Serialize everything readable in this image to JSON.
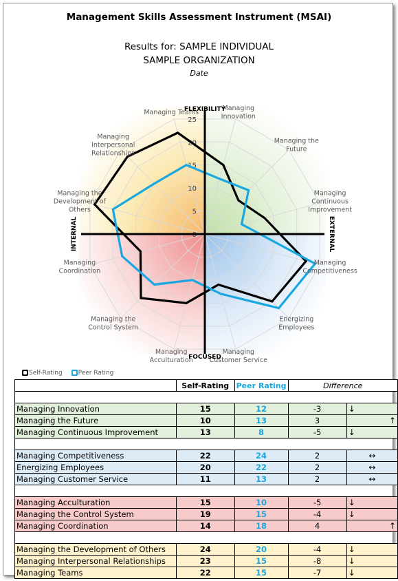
{
  "page": {
    "title": "Management Skills Assessment Instrument (MSAI)",
    "subtitle_line1": "Results for: SAMPLE INDIVIDUAL",
    "subtitle_line2": "SAMPLE ORGANIZATION",
    "date": "Date"
  },
  "colors": {
    "self": "#000000",
    "peer": "#1aa7e0",
    "green_quadrant": "#e2efda",
    "blue_quadrant": "#ddebf7",
    "red_quadrant": "#f8cbcb",
    "yellow_quadrant": "#fff2cc"
  },
  "chart_data": {
    "type": "radar",
    "axis_labels": {
      "top": "FLEXIBILITY",
      "bottom": "FOCUSED",
      "left": "INTERNAL",
      "right": "EXTERNAL"
    },
    "radial_ticks": [
      0,
      5,
      10,
      15,
      20,
      25
    ],
    "rmax": 25,
    "categories": [
      "Managing Innovation",
      "Managing the Future",
      "Managing Continuous Improvement",
      "Managing Competitiveness",
      "Energizing Employees",
      "Managing Customer Service",
      "Managing Acculturation",
      "Managing the Control System",
      "Managing Coordination",
      "Managing the Development of Others",
      "Managing Interpersonal Relationships",
      "Managing Teams"
    ],
    "series": [
      {
        "name": "Self-Rating",
        "values": [
          15,
          10,
          13,
          22,
          20,
          11,
          15,
          19,
          14,
          24,
          23,
          22
        ]
      },
      {
        "name": "Peer Rating",
        "values": [
          12,
          13,
          8,
          24,
          22,
          13,
          10,
          15,
          18,
          20,
          15,
          15
        ]
      }
    ]
  },
  "legend": {
    "self": "Self-Rating",
    "peer": "Peer Rating"
  },
  "table": {
    "headers": {
      "name": "",
      "self": "Self-Rating",
      "peer": "Peer Rating",
      "diff": "Difference"
    },
    "groups": [
      {
        "color": "green",
        "rows": [
          {
            "name": "Managing Innovation",
            "self": "15",
            "peer": "12",
            "diff": "-3",
            "arrow": "↓",
            "arrow_align": "left"
          },
          {
            "name": "Managing the Future",
            "self": "10",
            "peer": "13",
            "diff": "3",
            "arrow": "↑",
            "arrow_align": "right"
          },
          {
            "name": "Managing Continuous Improvement",
            "self": "13",
            "peer": "8",
            "diff": "-5",
            "arrow": "↓",
            "arrow_align": "left"
          }
        ]
      },
      {
        "color": "blue",
        "rows": [
          {
            "name": "Managing Competitiveness",
            "self": "22",
            "peer": "24",
            "diff": "2",
            "arrow": "↔",
            "arrow_align": "center"
          },
          {
            "name": "Energizing Employees",
            "self": "20",
            "peer": "22",
            "diff": "2",
            "arrow": "↔",
            "arrow_align": "center"
          },
          {
            "name": "Managing Customer Service",
            "self": "11",
            "peer": "13",
            "diff": "2",
            "arrow": "↔",
            "arrow_align": "center"
          }
        ]
      },
      {
        "color": "red",
        "rows": [
          {
            "name": "Managing Acculturation",
            "self": "15",
            "peer": "10",
            "diff": "-5",
            "arrow": "↓",
            "arrow_align": "left"
          },
          {
            "name": "Managing the Control System",
            "self": "19",
            "peer": "15",
            "diff": "-4",
            "arrow": "↓",
            "arrow_align": "left"
          },
          {
            "name": "Managing Coordination",
            "self": "14",
            "peer": "18",
            "diff": "4",
            "arrow": "↑",
            "arrow_align": "right"
          }
        ]
      },
      {
        "color": "yellow",
        "rows": [
          {
            "name": "Managing the Development of Others",
            "self": "24",
            "peer": "20",
            "diff": "-4",
            "arrow": "↓",
            "arrow_align": "left"
          },
          {
            "name": "Managing Interpersonal Relationships",
            "self": "23",
            "peer": "15",
            "diff": "-8",
            "arrow": "↓",
            "arrow_align": "left"
          },
          {
            "name": "Managing Teams",
            "self": "22",
            "peer": "15",
            "diff": "-7",
            "arrow": "↓",
            "arrow_align": "left"
          }
        ]
      }
    ]
  }
}
